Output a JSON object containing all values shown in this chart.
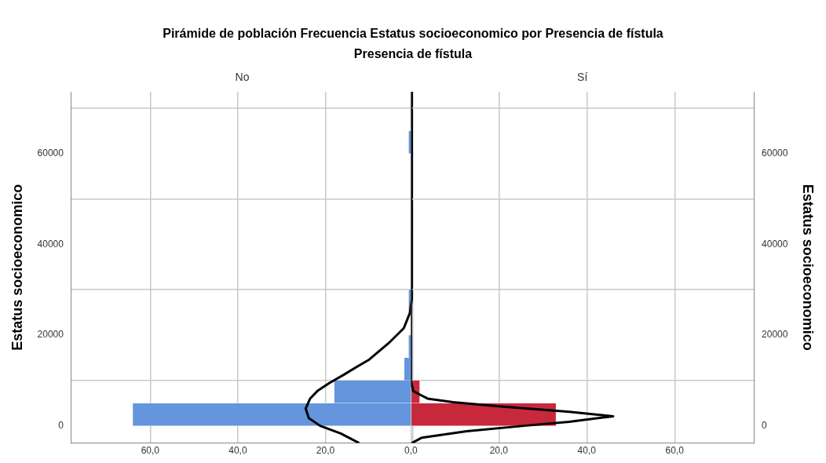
{
  "chart_data": [
    {
      "type": "histogram",
      "orientation": "horizontal",
      "title": "Pirámide de población Frecuencia Estatus socioeconomico  por Presencia de fístula",
      "subtitle": "Presencia de fístula",
      "annotations": [
        "No"
      ],
      "ylabel": "Estatus socioeconomico",
      "bins": [
        0,
        5000,
        10000,
        15000,
        20000,
        25000,
        30000,
        35000,
        40000,
        45000,
        50000,
        55000,
        60000,
        65000
      ],
      "series": [
        {
          "color": "#6495dd",
          "values": [
            64,
            18,
            2,
            1,
            0,
            1,
            0,
            0,
            0,
            0,
            0,
            0,
            1
          ]
        },
        {
          "type": "line",
          "color": "#000000",
          "x": [
            -3800,
            -1700,
            0,
            1700,
            3800,
            6000,
            7700,
            9500,
            11200,
            12900,
            14600,
            18100,
            21500,
            24900,
            28400,
            35300,
            73600
          ],
          "values": [
            12.3,
            16.5,
            21.2,
            23.8,
            24.5,
            23.5,
            21.8,
            19,
            15.9,
            13,
            10,
            5.7,
            2.1,
            0.7,
            0.2,
            0.1,
            0
          ]
        }
      ],
      "xlim": [
        78,
        0
      ],
      "xticks": [
        {
          "value": 60,
          "label": "60,0"
        },
        {
          "value": 40,
          "label": "40,0"
        },
        {
          "value": 20,
          "label": "20,0"
        },
        {
          "value": 0,
          "label": null
        }
      ],
      "ylim": [
        -3800,
        73600
      ],
      "yticks": [
        0,
        20000,
        40000,
        60000
      ],
      "grid": true
    },
    {
      "type": "histogram",
      "orientation": "horizontal",
      "annotations": [
        "Sí"
      ],
      "ylabel": "Estatus socioeconomico",
      "bins": [
        0,
        5000,
        10000,
        15000,
        20000,
        25000,
        30000,
        35000,
        40000,
        45000,
        50000,
        55000,
        60000,
        65000
      ],
      "series": [
        {
          "color": "#c8283c",
          "values": [
            33,
            2,
            0,
            0,
            0,
            0,
            0,
            0,
            0,
            0,
            0,
            0,
            0
          ]
        },
        {
          "type": "line",
          "color": "#000000",
          "x": [
            -3800,
            -2600,
            -1200,
            0,
            900,
            2100,
            3100,
            4300,
            5200,
            6000,
            6900,
            7700,
            9500,
            73600
          ],
          "values": [
            0.2,
            2.5,
            12.7,
            25.7,
            36,
            46,
            36,
            20,
            9.6,
            3.8,
            2,
            0.5,
            0.1,
            0
          ]
        }
      ],
      "xlim": [
        0,
        78
      ],
      "xticks": [
        {
          "value": 0,
          "label": "0,0"
        },
        {
          "value": 20,
          "label": "20,0"
        },
        {
          "value": 40,
          "label": "40,0"
        },
        {
          "value": 60,
          "label": "60,0"
        }
      ],
      "ylim": [
        -3800,
        73600
      ],
      "yticks": [
        0,
        20000,
        40000,
        60000
      ],
      "grid": true
    }
  ]
}
